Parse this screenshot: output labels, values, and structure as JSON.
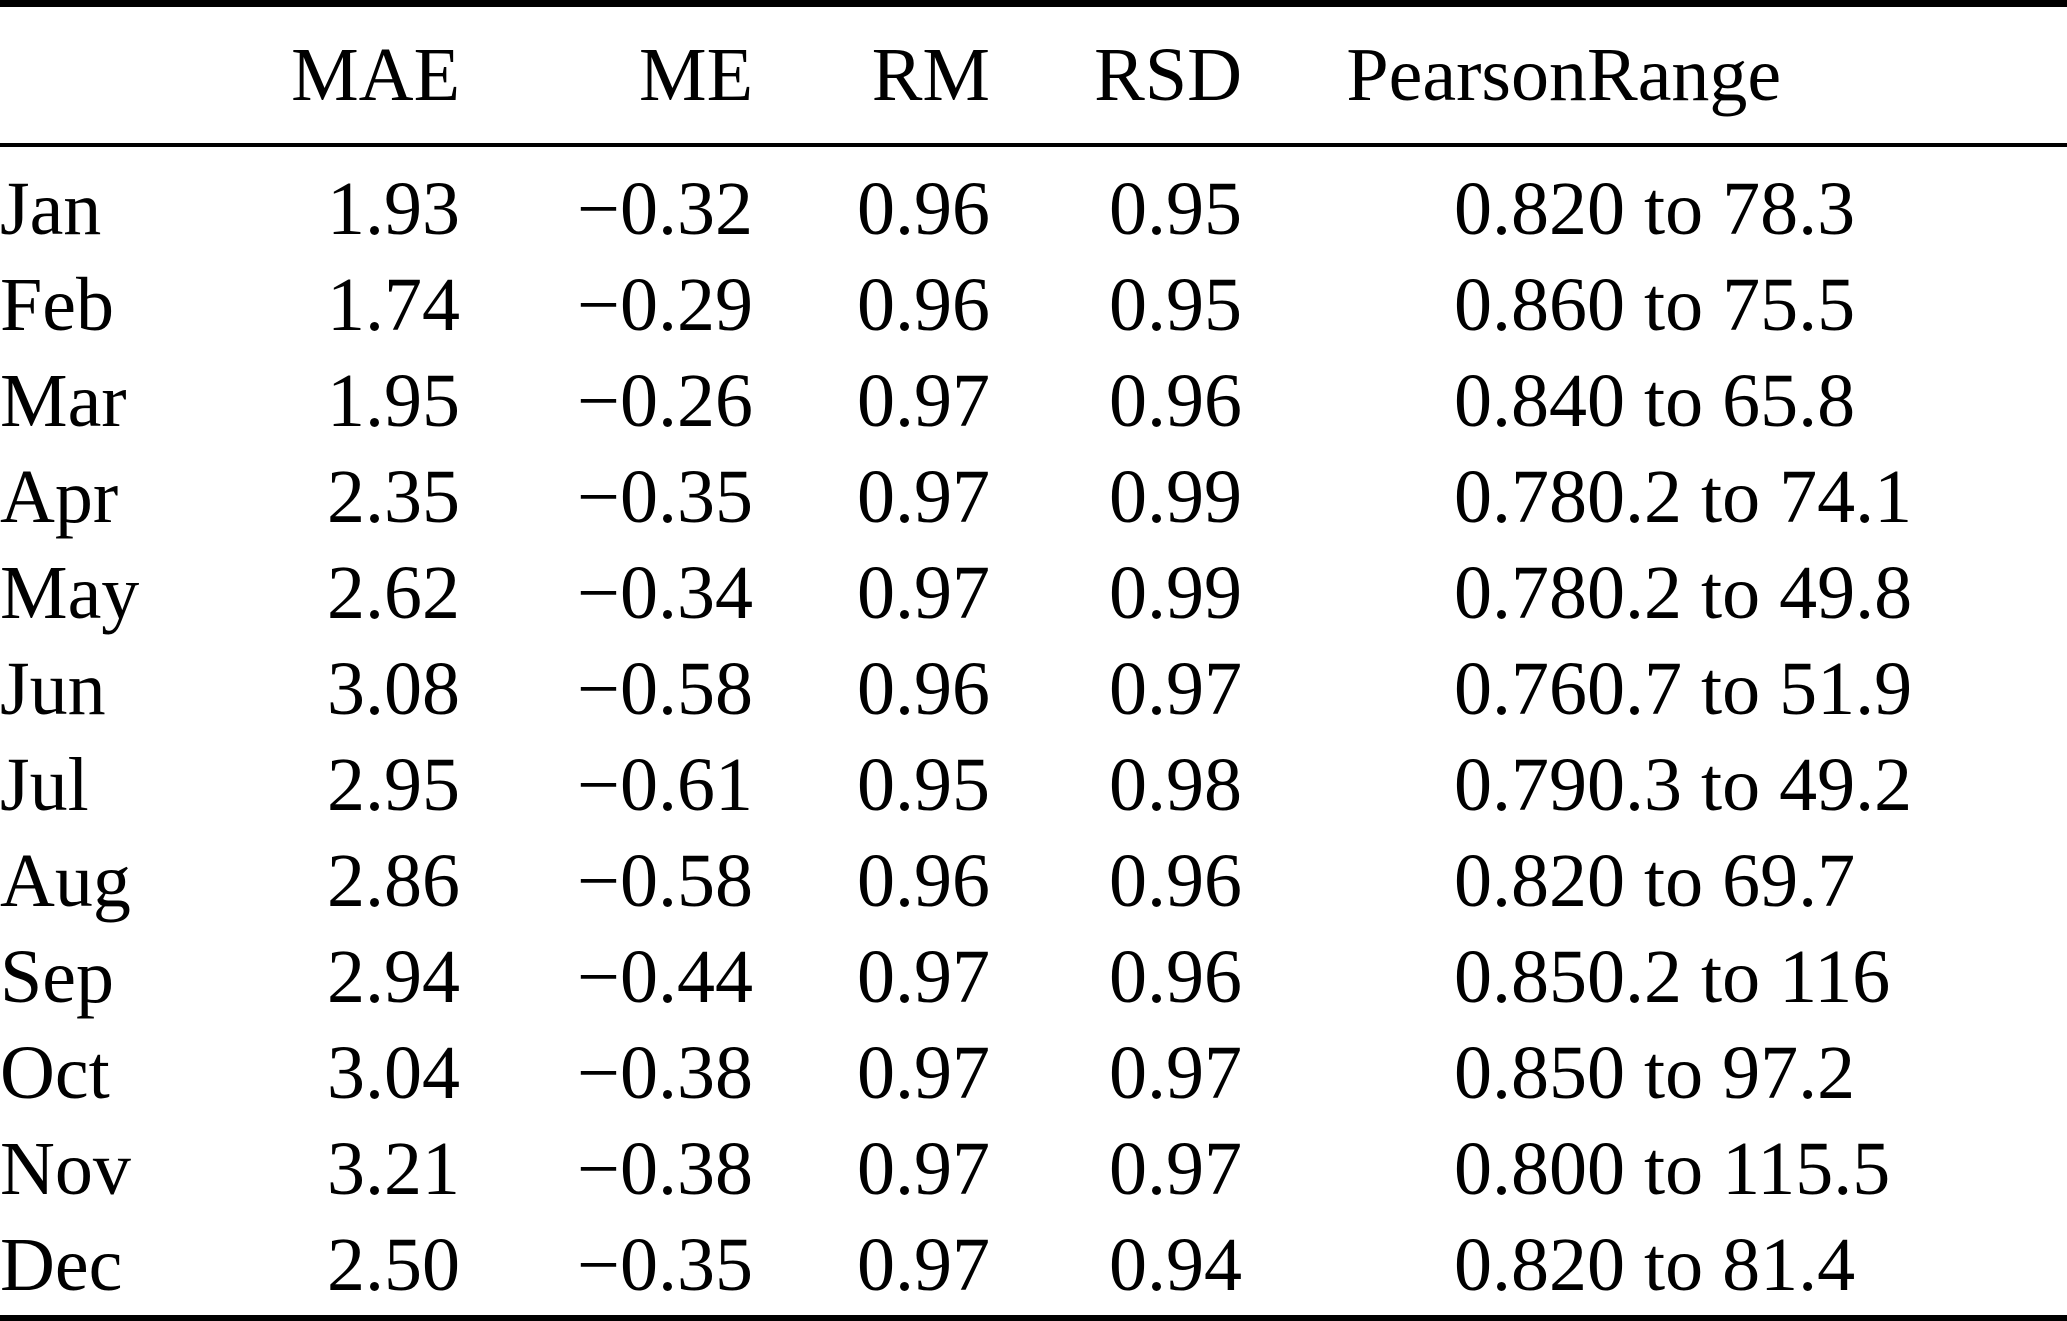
{
  "table": {
    "columns": [
      {
        "key": "month",
        "label": "",
        "align": "left"
      },
      {
        "key": "mae",
        "label": "MAE",
        "align": "right"
      },
      {
        "key": "me",
        "label": "ME",
        "align": "right"
      },
      {
        "key": "rm",
        "label": "RM",
        "align": "right"
      },
      {
        "key": "rsd",
        "label": "RSD",
        "align": "right"
      },
      {
        "key": "pearson",
        "label": "Pearson",
        "align": "right"
      },
      {
        "key": "range",
        "label": "Range",
        "align": "left"
      }
    ],
    "rows": [
      {
        "month": "Jan",
        "mae": "1.93",
        "me": "−0.32",
        "rm": "0.96",
        "rsd": "0.95",
        "pearson": "0.82",
        "range": "0 to 78.3"
      },
      {
        "month": "Feb",
        "mae": "1.74",
        "me": "−0.29",
        "rm": "0.96",
        "rsd": "0.95",
        "pearson": "0.86",
        "range": "0 to 75.5"
      },
      {
        "month": "Mar",
        "mae": "1.95",
        "me": "−0.26",
        "rm": "0.97",
        "rsd": "0.96",
        "pearson": "0.84",
        "range": "0 to 65.8"
      },
      {
        "month": "Apr",
        "mae": "2.35",
        "me": "−0.35",
        "rm": "0.97",
        "rsd": "0.99",
        "pearson": "0.78",
        "range": "0.2 to 74.1"
      },
      {
        "month": "May",
        "mae": "2.62",
        "me": "−0.34",
        "rm": "0.97",
        "rsd": "0.99",
        "pearson": "0.78",
        "range": "0.2 to 49.8"
      },
      {
        "month": "Jun",
        "mae": "3.08",
        "me": "−0.58",
        "rm": "0.96",
        "rsd": "0.97",
        "pearson": "0.76",
        "range": "0.7 to 51.9"
      },
      {
        "month": "Jul",
        "mae": "2.95",
        "me": "−0.61",
        "rm": "0.95",
        "rsd": "0.98",
        "pearson": "0.79",
        "range": "0.3 to 49.2"
      },
      {
        "month": "Aug",
        "mae": "2.86",
        "me": "−0.58",
        "rm": "0.96",
        "rsd": "0.96",
        "pearson": "0.82",
        "range": "0 to 69.7"
      },
      {
        "month": "Sep",
        "mae": "2.94",
        "me": "−0.44",
        "rm": "0.97",
        "rsd": "0.96",
        "pearson": "0.85",
        "range": "0.2 to 116"
      },
      {
        "month": "Oct",
        "mae": "3.04",
        "me": "−0.38",
        "rm": "0.97",
        "rsd": "0.97",
        "pearson": "0.85",
        "range": "0 to 97.2"
      },
      {
        "month": "Nov",
        "mae": "3.21",
        "me": "−0.38",
        "rm": "0.97",
        "rsd": "0.97",
        "pearson": "0.80",
        "range": "0 to 115.5"
      },
      {
        "month": "Dec",
        "mae": "2.50",
        "me": "−0.35",
        "rm": "0.97",
        "rsd": "0.94",
        "pearson": "0.82",
        "range": "0 to 81.4"
      }
    ]
  }
}
